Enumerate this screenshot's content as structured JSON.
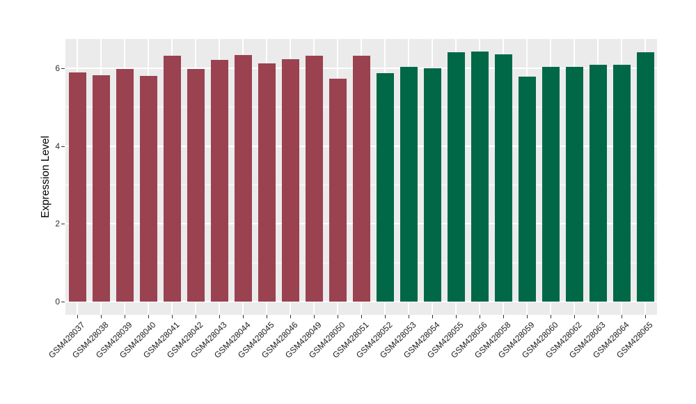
{
  "chart_data": {
    "type": "bar",
    "title": "",
    "xlabel": "",
    "ylabel": "Expression Level",
    "ylim": [
      0,
      6.75
    ],
    "yticks": [
      0,
      2,
      4,
      6
    ],
    "yticks_minor": [
      1,
      3,
      5
    ],
    "grid": "white major and minor horizontal lines, white vertical lines at category centers, on light gray panel",
    "legend_position": "none",
    "categories": [
      "GSM428037",
      "GSM428038",
      "GSM428039",
      "GSM428040",
      "GSM428041",
      "GSM428042",
      "GSM428043",
      "GSM428044",
      "GSM428045",
      "GSM428046",
      "GSM428049",
      "GSM428050",
      "GSM428051",
      "GSM428052",
      "GSM428053",
      "GSM428054",
      "GSM428055",
      "GSM428056",
      "GSM428058",
      "GSM428059",
      "GSM428060",
      "GSM428062",
      "GSM428063",
      "GSM428064",
      "GSM428065"
    ],
    "values": [
      5.9,
      5.83,
      5.98,
      5.8,
      6.33,
      5.98,
      6.21,
      6.34,
      6.12,
      6.24,
      6.32,
      5.74,
      6.33,
      5.88,
      6.04,
      6.0,
      6.42,
      6.43,
      6.35,
      5.79,
      6.03,
      6.04,
      6.09,
      6.09,
      6.42
    ],
    "series": [
      {
        "name": "group-maroon",
        "color": "#9A4250",
        "first_index": 0,
        "last_index": 12
      },
      {
        "name": "group-green",
        "color": "#006847",
        "first_index": 13,
        "last_index": 24
      }
    ],
    "split_index": 13
  },
  "colors": {
    "panel_background": "#EBEBEB",
    "gridline": "#FFFFFF",
    "bar_maroon": "#9A4250",
    "bar_green": "#006847",
    "tick_text": "#303030",
    "x_label_text": "#1A1A1A",
    "axis_title_text": "#000000",
    "outer_background": "#FFFFFF"
  }
}
